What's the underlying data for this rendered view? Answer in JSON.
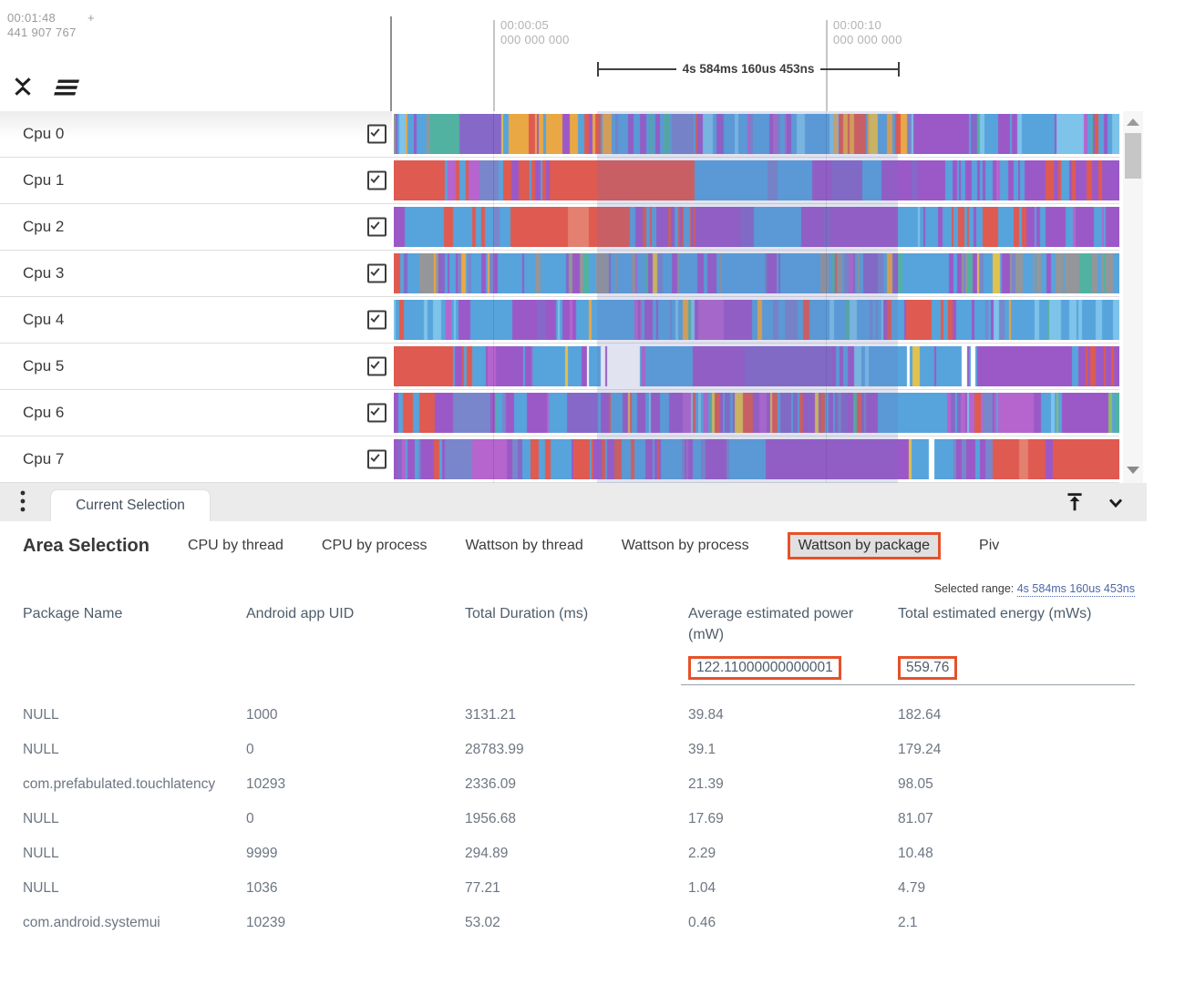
{
  "ruler": {
    "origin": {
      "time": "00:01:48",
      "plus": "+",
      "fraction": "441 907 767"
    },
    "ticks": [
      {
        "time": "00:00:05",
        "fraction": "000 000 000"
      },
      {
        "time": "00:00:10",
        "fraction": "000 000 000"
      }
    ],
    "range_marker": "4s 584ms 160us 453ns"
  },
  "timeline": {
    "rows": [
      {
        "label": "Cpu 0",
        "checked": true
      },
      {
        "label": "Cpu 1",
        "checked": true
      },
      {
        "label": "Cpu 2",
        "checked": true
      },
      {
        "label": "Cpu 3",
        "checked": true
      },
      {
        "label": "Cpu 4",
        "checked": true
      },
      {
        "label": "Cpu 5",
        "checked": true
      },
      {
        "label": "Cpu 6",
        "checked": true
      },
      {
        "label": "Cpu 7",
        "checked": true
      }
    ],
    "palette": [
      "#57a3dc",
      "#7ec3ea",
      "#7a86cb",
      "#9b59c8",
      "#b565cd",
      "#8668c9",
      "#df5a50",
      "#e4806f",
      "#eaa844",
      "#e2c24e",
      "#52b2a2",
      "#8bbd68",
      "#949699",
      "#ffffff"
    ],
    "selection_tint": "rgba(104,114,185,0.20)"
  },
  "bottom_panel": {
    "drawer_tab": "Current Selection",
    "heading": "Area Selection",
    "view_tabs": [
      {
        "label": "CPU by thread",
        "active": false
      },
      {
        "label": "CPU by process",
        "active": false
      },
      {
        "label": "Wattson by thread",
        "active": false
      },
      {
        "label": "Wattson by process",
        "active": false
      },
      {
        "label": "Wattson by package",
        "active": true
      },
      {
        "label": "Piv",
        "active": false
      }
    ],
    "selected_range": {
      "label": "Selected range:",
      "value": "4s 584ms 160us 453ns"
    },
    "table": {
      "columns": [
        "Package Name",
        "Android app UID",
        "Total Duration (ms)",
        "Average estimated power (mW)",
        "Total estimated energy (mWs)"
      ],
      "totals": {
        "average_power": "122.11000000000001",
        "total_energy": "559.76"
      },
      "rows": [
        {
          "package": "NULL",
          "uid": "1000",
          "duration": "3131.21",
          "power": "39.84",
          "energy": "182.64"
        },
        {
          "package": "NULL",
          "uid": "0",
          "duration": "28783.99",
          "power": "39.1",
          "energy": "179.24"
        },
        {
          "package": "com.prefabulated.touchlatency",
          "uid": "10293",
          "duration": "2336.09",
          "power": "21.39",
          "energy": "98.05"
        },
        {
          "package": "NULL",
          "uid": "0",
          "duration": "1956.68",
          "power": "17.69",
          "energy": "81.07"
        },
        {
          "package": "NULL",
          "uid": "9999",
          "duration": "294.89",
          "power": "2.29",
          "energy": "10.48"
        },
        {
          "package": "NULL",
          "uid": "1036",
          "duration": "77.21",
          "power": "1.04",
          "energy": "4.79"
        },
        {
          "package": "com.android.systemui",
          "uid": "10239",
          "duration": "53.02",
          "power": "0.46",
          "energy": "2.1"
        }
      ]
    }
  },
  "colors": {
    "accent_box": "#e6512a",
    "range_link": "#4a68a8",
    "header_text": "#4e5d6c",
    "body_text": "#6d7682",
    "tab_bar_bg": "#ebebeb",
    "ruler_text": "#9b9b9b"
  },
  "icons": [
    "collapse-all-icon",
    "sort-icon",
    "checkbox-checked-icon",
    "more-vert-icon",
    "dock-to-top-icon",
    "chevron-down-icon",
    "scroll-up-icon",
    "scroll-down-icon"
  ]
}
